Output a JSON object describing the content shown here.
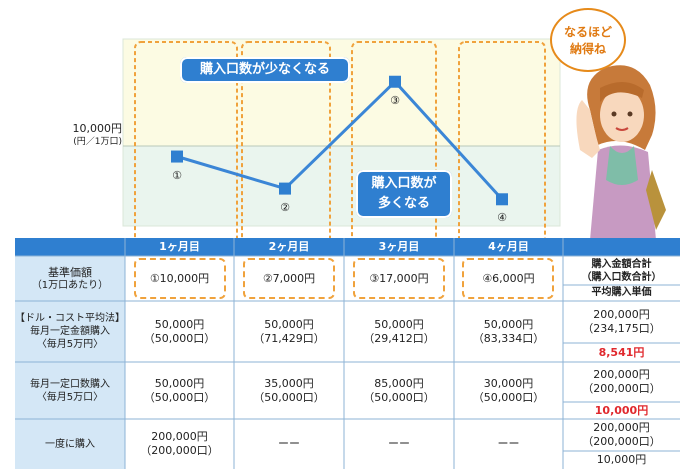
{
  "chart_data": {
    "type": "line",
    "categories": [
      "1ヶ月目",
      "2ヶ月目",
      "3ヶ月目",
      "4ヶ月目"
    ],
    "values": [
      10000,
      7000,
      17000,
      6000
    ],
    "point_labels": [
      "①",
      "②",
      "③",
      "④"
    ],
    "ylabel": "10,000円",
    "ylabel_sub": "(円／1万口)",
    "reference_line": 10000,
    "ylim": [
      3500,
      21000
    ],
    "annotations": [
      "購入口数が少なくなる",
      "購入口数が多くなる"
    ],
    "colors": {
      "line": "#3b86d6",
      "marker": "#2f7fd0",
      "upper_band": "#fcfbe3",
      "lower_band": "#eaf5ee",
      "highlight": "#f0a23c"
    }
  },
  "speech": [
    "なるほど",
    "納得ね"
  ],
  "annotation_few": "購入口数が少なくなる",
  "annotation_many": [
    "購入口数が",
    "多くなる"
  ],
  "table": {
    "months": [
      "1ヶ月目",
      "2ヶ月目",
      "3ヶ月目",
      "4ヶ月目"
    ],
    "base_price": {
      "label": [
        "基準価額",
        "（1万口あたり）"
      ],
      "values": [
        "①10,000円",
        "②7,000円",
        "③17,000円",
        "④6,000円"
      ]
    },
    "totals_header": [
      "購入金額合計",
      "（購入口数合計）"
    ],
    "avg_header": "平均購入単価",
    "rows": [
      {
        "label": [
          "【ドル・コスト平均法】",
          "毎月一定金額購入",
          "〈毎月5万円〉"
        ],
        "amounts": [
          "50,000円",
          "50,000円",
          "50,000円",
          "50,000円"
        ],
        "units": [
          "（50,000口）",
          "（71,429口）",
          "（29,412口）",
          "（83,334口）"
        ],
        "total": "200,000円",
        "total_units": "（234,175口）",
        "avg": "8,541円"
      },
      {
        "label": [
          "毎月一定口数購入",
          "〈毎月5万口〉"
        ],
        "amounts": [
          "50,000円",
          "35,000円",
          "85,000円",
          "30,000円"
        ],
        "units": [
          "（50,000口）",
          "（50,000口）",
          "（50,000口）",
          "（50,000口）"
        ],
        "total": "200,000円",
        "total_units": "（200,000口）",
        "avg": "10,000円"
      },
      {
        "label": [
          "一度に購入"
        ],
        "amounts": [
          "200,000円",
          "ーー",
          "ーー",
          "ーー"
        ],
        "units": [
          "（200,000口）",
          "",
          "",
          ""
        ],
        "total": "200,000円",
        "total_units": "（200,000口）",
        "avg": "10,000円"
      }
    ]
  }
}
